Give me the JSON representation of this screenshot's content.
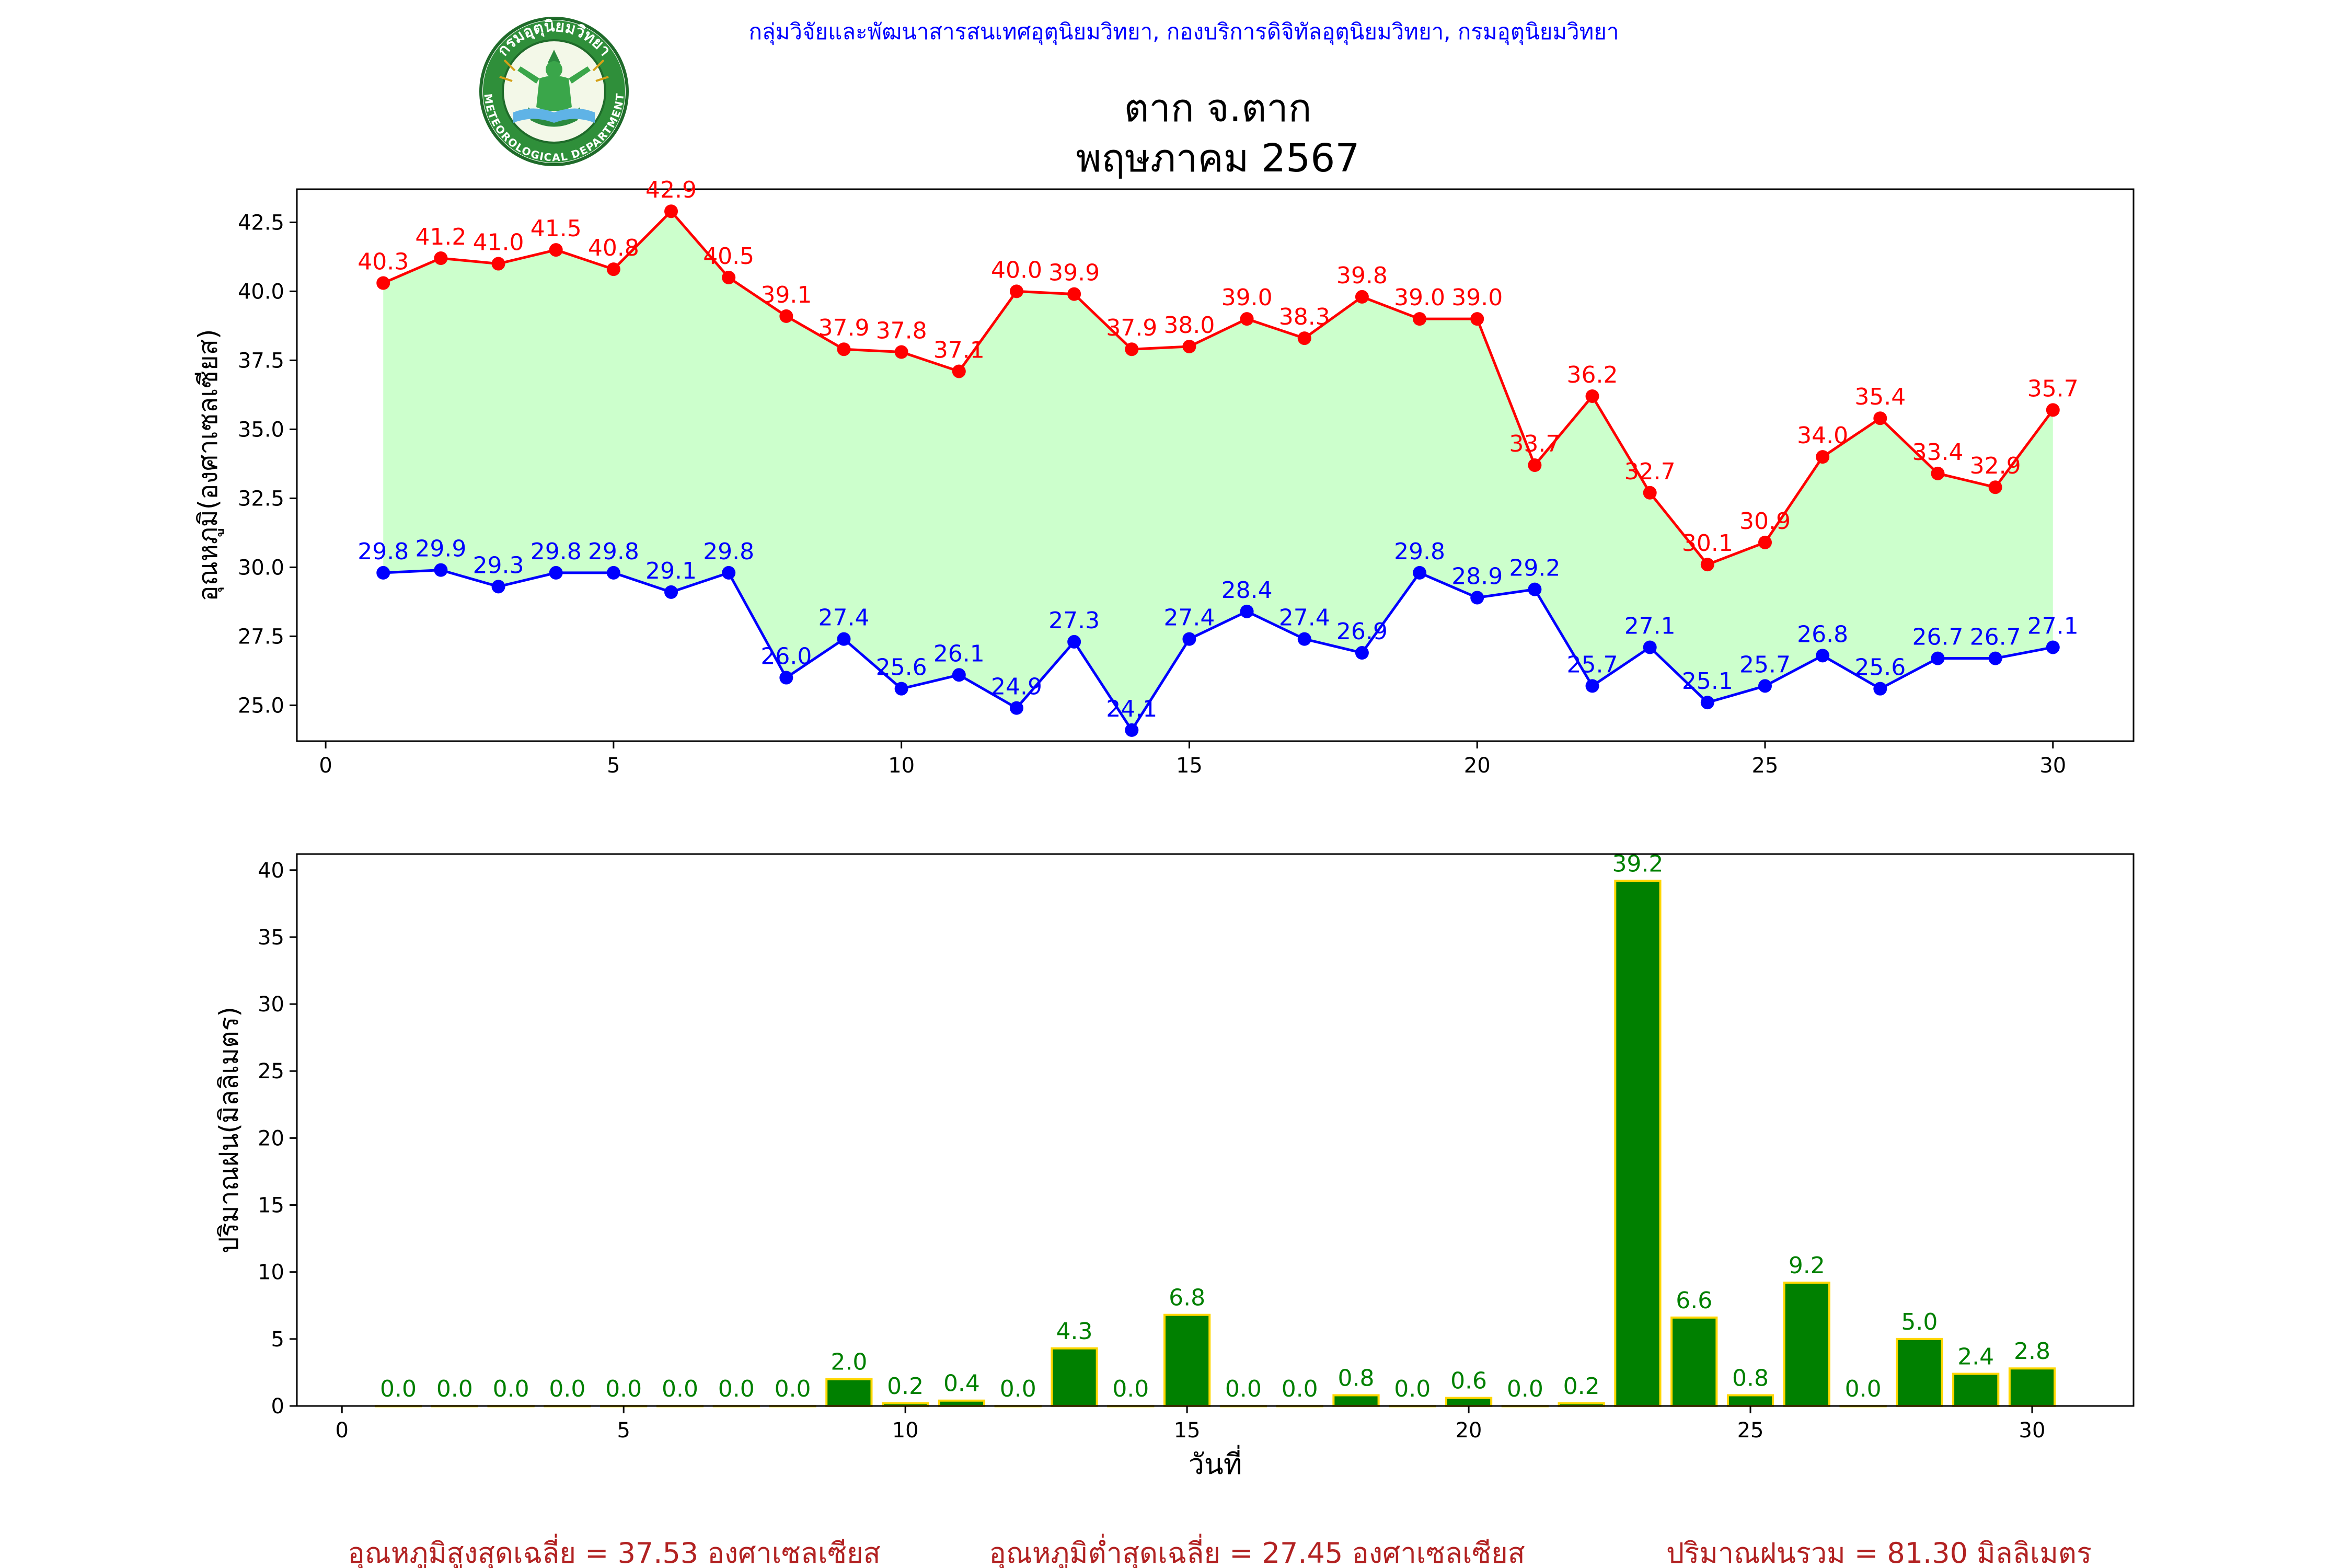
{
  "header": {
    "org_line": "กลุ่มวิจัยและพัฒนาสารสนเทศอุตุนิยมวิทยา, กองบริการดิจิทัลอุตุนิยมวิทยา, กรมอุตุนิยมวิทยา",
    "title_line1": "ตาก จ.ตาก",
    "title_line2": "พฤษภาคม 2567",
    "logo_text_top": "กรมอุตุนิยมวิทยา",
    "logo_text_bottom": "METEOROLOGICAL DEPARTMENT"
  },
  "colors": {
    "max": "#ff0000",
    "min": "#0000ff",
    "band": "#ccffcc",
    "rain_bar": "#008000",
    "rain_edge": "#ffd700",
    "rain_label": "#008000",
    "footer": "#b22222",
    "org_line": "#0000ff"
  },
  "chart_data": [
    {
      "type": "line",
      "name": "temperature",
      "x": [
        1,
        2,
        3,
        4,
        5,
        6,
        7,
        8,
        9,
        10,
        11,
        12,
        13,
        14,
        15,
        16,
        17,
        18,
        19,
        20,
        21,
        22,
        23,
        24,
        25,
        26,
        27,
        28,
        29,
        30
      ],
      "series": [
        {
          "values": [
            40.3,
            41.2,
            41.0,
            41.5,
            40.8,
            42.9,
            40.5,
            39.1,
            37.9,
            37.8,
            37.1,
            40.0,
            39.9,
            37.9,
            38.0,
            39.0,
            38.3,
            39.8,
            39.0,
            39.0,
            33.7,
            36.2,
            32.7,
            30.1,
            30.9,
            34.0,
            35.4,
            33.4,
            32.9,
            35.7
          ]
        },
        {
          "values": [
            29.8,
            29.9,
            29.3,
            29.8,
            29.8,
            29.1,
            29.8,
            26.0,
            27.4,
            25.6,
            26.1,
            24.9,
            27.3,
            24.1,
            27.4,
            28.4,
            27.4,
            26.9,
            29.8,
            28.9,
            29.2,
            25.7,
            27.1,
            25.1,
            25.7,
            26.8,
            25.6,
            26.7,
            26.7,
            27.1
          ]
        }
      ],
      "ylabel": "อุณหภูมิ(องศาเซลเซียส)",
      "xlabel": "",
      "xlim": [
        -0.5,
        31.4
      ],
      "ylim": [
        23.7,
        43.7
      ],
      "xticks": [
        0,
        5,
        10,
        15,
        20,
        25,
        30
      ],
      "yticks": [
        25.0,
        27.5,
        30.0,
        32.5,
        35.0,
        37.5,
        40.0,
        42.5
      ],
      "grid": false
    },
    {
      "type": "bar",
      "name": "rainfall",
      "x": [
        1,
        2,
        3,
        4,
        5,
        6,
        7,
        8,
        9,
        10,
        11,
        12,
        13,
        14,
        15,
        16,
        17,
        18,
        19,
        20,
        21,
        22,
        23,
        24,
        25,
        26,
        27,
        28,
        29,
        30
      ],
      "values": [
        0.0,
        0.0,
        0.0,
        0.0,
        0.0,
        0.0,
        0.0,
        0.0,
        2.0,
        0.2,
        0.4,
        0.0,
        4.3,
        0.0,
        6.8,
        0.0,
        0.0,
        0.8,
        0.0,
        0.6,
        0.0,
        0.2,
        39.2,
        6.6,
        0.8,
        9.2,
        0.0,
        5.0,
        2.4,
        2.8
      ],
      "ylabel": "ปริมาณฝน(มิลลิเมตร)",
      "xlabel": "วันที่",
      "xlim": [
        -0.8,
        31.8
      ],
      "ylim": [
        0,
        41.2
      ],
      "xticks": [
        0,
        5,
        10,
        15,
        20,
        25,
        30
      ],
      "yticks": [
        0,
        5,
        10,
        15,
        20,
        25,
        30,
        35,
        40
      ],
      "grid": false
    }
  ],
  "footer": {
    "avg_max": "อุณหภูมิสูงสุดเฉลี่ย = 37.53 องศาเซลเซียส",
    "avg_min": "อุณหภูมิต่ำสุดเฉลี่ย = 27.45 องศาเซลเซียส",
    "rain_total": "ปริมาณฝนรวม = 81.30 มิลลิเมตร"
  }
}
